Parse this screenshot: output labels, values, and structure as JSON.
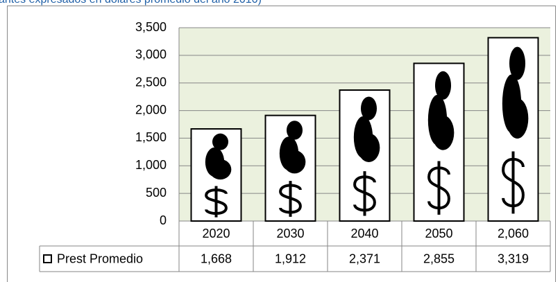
{
  "chart_data": {
    "type": "bar",
    "subtitle": "antes expresados en dólares promedio del año 2010)",
    "categories": [
      "2020",
      "2030",
      "2040",
      "2050",
      "2,060"
    ],
    "series": [
      {
        "name": "Prest Promedio",
        "color": "#ffffff",
        "values": [
          1668,
          1912,
          2371,
          2855,
          3319
        ],
        "value_labels": [
          "1,668",
          "1,912",
          "2,371",
          "2,855",
          "3,319"
        ]
      }
    ],
    "ylim": [
      0,
      3500
    ],
    "yticks": [
      0,
      500,
      {
        "value": 1000,
        "label": "1,000"
      },
      {
        "value": 1500,
        "label": "1,500"
      },
      {
        "value": 2000,
        "label": "2,000"
      },
      {
        "value": 2500,
        "label": "2,500"
      },
      {
        "value": 3000,
        "label": "3,000"
      },
      {
        "value": 3500,
        "label": "3,500"
      }
    ],
    "grid": true
  }
}
